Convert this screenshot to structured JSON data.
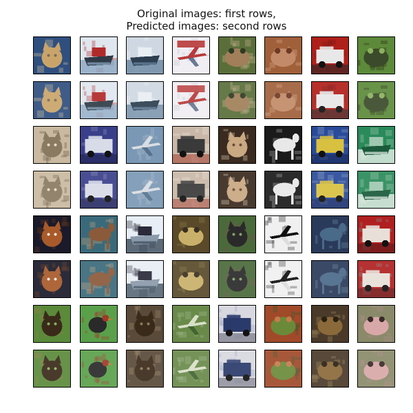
{
  "figure": {
    "title_line1": "Original images: first rows,",
    "title_line2": "Predicted images: second rows"
  },
  "grid": {
    "rows": 8,
    "cols": 8,
    "pairs": [
      {
        "group": 1,
        "images": [
          {
            "subject": "cat",
            "colors": [
              "#2f4f7f",
              "#c9a46a",
              "#7a6a55",
              "#d8c39a"
            ]
          },
          {
            "subject": "boat",
            "colors": [
              "#dfe6ee",
              "#8aa6c2",
              "#2f3b47",
              "#b12a2a"
            ]
          },
          {
            "subject": "boat",
            "colors": [
              "#cfd8e2",
              "#6b88a3",
              "#2c3e50",
              "#e8eef2"
            ]
          },
          {
            "subject": "airplane-poster",
            "colors": [
              "#f0eef2",
              "#b83a3a",
              "#4a5d7a",
              "#c9c9d6"
            ]
          },
          {
            "subject": "frog",
            "colors": [
              "#5a6e3a",
              "#a07f5a",
              "#2f3a22",
              "#c9b48f"
            ]
          },
          {
            "subject": "frog",
            "colors": [
              "#a0603a",
              "#c28a68",
              "#6e3a25",
              "#d8a88a"
            ]
          },
          {
            "subject": "car",
            "colors": [
              "#b0201a",
              "#e8e8e8",
              "#2a2a2a",
              "#7a1a16"
            ]
          },
          {
            "subject": "frog",
            "colors": [
              "#5d8a3a",
              "#3a4a2a",
              "#8bb060",
              "#2a2a1a"
            ]
          }
        ]
      },
      {
        "group": 2,
        "images": [
          {
            "subject": "cat",
            "colors": [
              "#c9b9a0",
              "#8a7a62",
              "#e6dcc8",
              "#6a5a48"
            ]
          },
          {
            "subject": "truck",
            "colors": [
              "#3a3f8a",
              "#d8dce8",
              "#1f2350",
              "#8a8fb8"
            ]
          },
          {
            "subject": "airplane",
            "colors": [
              "#7a98b5",
              "#d8dde2",
              "#4a6580",
              "#a8b8c8"
            ]
          },
          {
            "subject": "truck",
            "colors": [
              "#c9b8a8",
              "#3a3a3a",
              "#a84a3a",
              "#e8e0d8"
            ]
          },
          {
            "subject": "dog",
            "colors": [
              "#3a2a1f",
              "#c9a882",
              "#6a4a35",
              "#e0cdb2"
            ]
          },
          {
            "subject": "horse",
            "colors": [
              "#1a1a1a",
              "#e8e8e8",
              "#5a5a5a",
              "#b0b0b0"
            ]
          },
          {
            "subject": "truck",
            "colors": [
              "#2a4a9a",
              "#d8c040",
              "#1a2a5a",
              "#8aa0c0"
            ]
          },
          {
            "subject": "ship",
            "colors": [
              "#2a8a5a",
              "#e8f0ea",
              "#1a5a3a",
              "#a0c8b0"
            ]
          }
        ]
      },
      {
        "group": 3,
        "images": [
          {
            "subject": "dog",
            "colors": [
              "#1a1a2a",
              "#a85a2a",
              "#f0e8e0",
              "#6a3a1a"
            ]
          },
          {
            "subject": "horse",
            "colors": [
              "#3a6a7a",
              "#8a5a3a",
              "#2a2a2a",
              "#c9a07a"
            ]
          },
          {
            "subject": "boat",
            "colors": [
              "#e8eef5",
              "#3a4a5a",
              "#8a9aaa",
              "#2a2a3a"
            ]
          },
          {
            "subject": "frog",
            "colors": [
              "#5a4a2a",
              "#c9b06a",
              "#3a3020",
              "#8a7a4a"
            ]
          },
          {
            "subject": "dog",
            "colors": [
              "#4a6a3a",
              "#2a2a2a",
              "#8aa06a",
              "#6a5a4a"
            ]
          },
          {
            "subject": "airplane",
            "colors": [
              "#f0f0f0",
              "#101010",
              "#d8d8d8",
              "#303030"
            ]
          },
          {
            "subject": "deer",
            "colors": [
              "#2a3a5a",
              "#4a6a8a",
              "#1a2a3a",
              "#6a8aa0"
            ]
          },
          {
            "subject": "truck",
            "colors": [
              "#b02020",
              "#e8e0d8",
              "#5a1a1a",
              "#8a8a8a"
            ]
          }
        ]
      },
      {
        "group": 4,
        "images": [
          {
            "subject": "dog",
            "colors": [
              "#5a8a3a",
              "#3a2a1a",
              "#8ab060",
              "#a07a4a"
            ]
          },
          {
            "subject": "bird",
            "colors": [
              "#5aa04a",
              "#2a2a2a",
              "#8ac070",
              "#a03a2a"
            ]
          },
          {
            "subject": "cat",
            "colors": [
              "#5a4a3a",
              "#3a2a1a",
              "#8a7a5a",
              "#a08a6a"
            ]
          },
          {
            "subject": "airplane",
            "colors": [
              "#6a8a4a",
              "#d8e0c8",
              "#3a5a2a",
              "#a0b890"
            ]
          },
          {
            "subject": "truck",
            "colors": [
              "#d8d8e0",
              "#2a3a6a",
              "#6a6a7a",
              "#a0a8c0"
            ]
          },
          {
            "subject": "frog",
            "colors": [
              "#a04a2a",
              "#6a8a3a",
              "#c97a4a",
              "#3a5a2a"
            ]
          },
          {
            "subject": "frog",
            "colors": [
              "#4a3a2a",
              "#8a6a3a",
              "#2a2010",
              "#a08a5a"
            ]
          },
          {
            "subject": "toad",
            "colors": [
              "#8a8a6a",
              "#d8a8a8",
              "#3a2a2a",
              "#b08a8a"
            ]
          }
        ]
      }
    ]
  }
}
